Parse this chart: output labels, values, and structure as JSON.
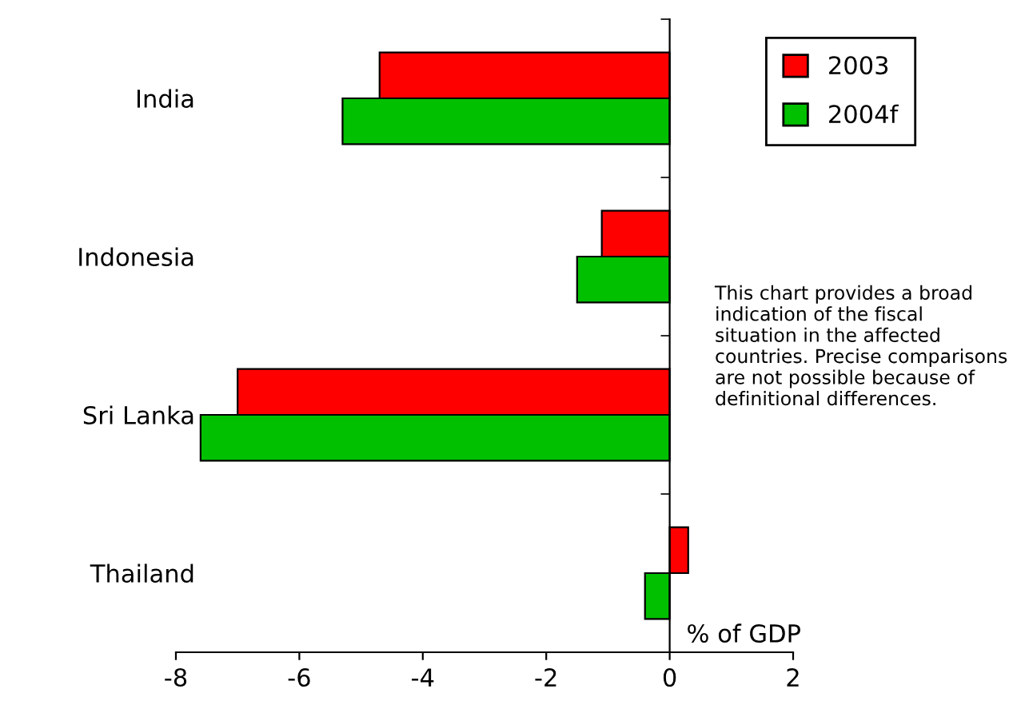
{
  "chart_data": {
    "type": "bar",
    "orientation": "horizontal",
    "categories": [
      "India",
      "Indonesia",
      "Sri Lanka",
      "Thailand"
    ],
    "series": [
      {
        "name": "2003",
        "color": "#ff0000",
        "values": [
          -4.7,
          -1.1,
          -7.0,
          0.3
        ]
      },
      {
        "name": "2004f",
        "color": "#00c000",
        "values": [
          -5.3,
          -1.5,
          -7.6,
          -0.4
        ]
      }
    ],
    "xlim": [
      -8,
      2
    ],
    "xticks": [
      -8,
      -6,
      -4,
      -2,
      0,
      2
    ],
    "xlabel": "% of GDP",
    "legend": "top right",
    "annotations": [
      "This chart provides a broad indication of the fiscal situation in the affected countries. Precise comparisons are not possible because of definitional differences."
    ]
  }
}
